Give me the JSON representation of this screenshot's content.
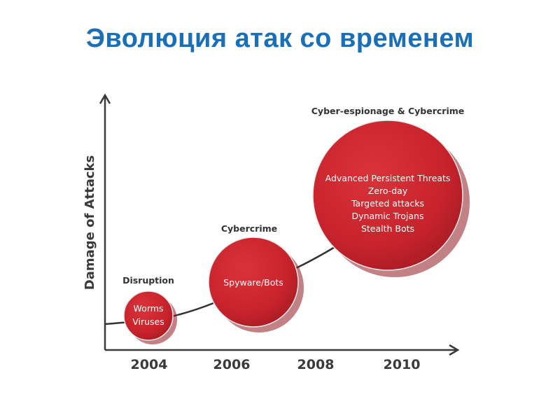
{
  "title": "Эволюция атак со временем",
  "diagram": {
    "y_axis_label": "Damage of Attacks",
    "years": [
      "2004",
      "2006",
      "2008",
      "2010"
    ],
    "stages": [
      {
        "category": "Disruption",
        "items": [
          "Worms",
          "Viruses"
        ]
      },
      {
        "category": "Cybercrime",
        "items": [
          "Spyware/Bots"
        ]
      },
      {
        "category": "Cyber-espionage & Cybercrime",
        "items": [
          "Advanced Persistent Threats",
          "Zero-day",
          "Targeted attacks",
          "Dynamic Trojans",
          "Stealth Bots"
        ]
      }
    ],
    "colors": {
      "bubble": "#c8232c",
      "bubble_shadow": "#8e1a20",
      "axis": "#3a3a3a",
      "title": "#1a6fb6"
    }
  }
}
